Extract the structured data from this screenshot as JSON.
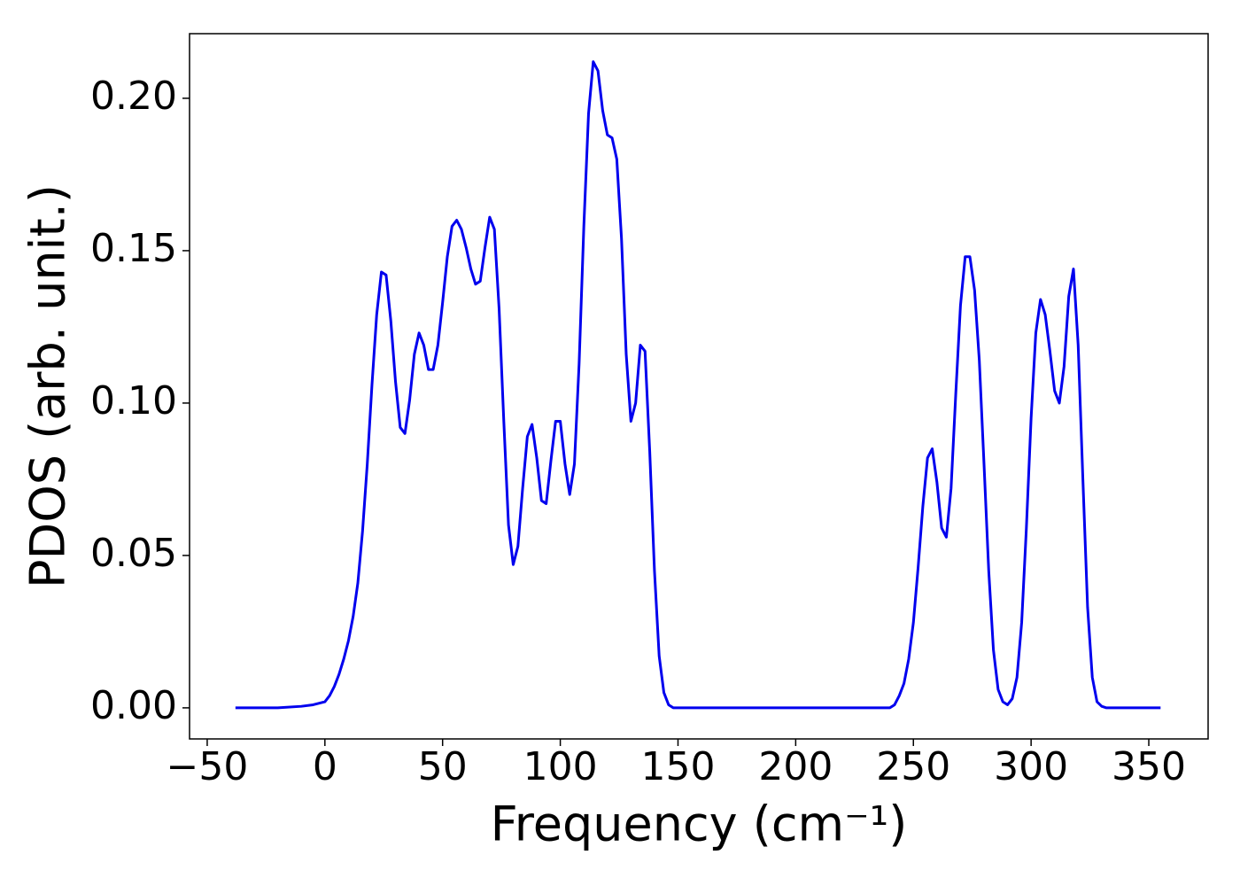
{
  "chart_data": {
    "type": "line",
    "xlabel": "Frequency (cm⁻¹)",
    "ylabel": "PDOS (arb. unit.)",
    "x": [
      -38,
      -30,
      -20,
      -10,
      -5,
      0,
      2,
      4,
      6,
      8,
      10,
      12,
      14,
      16,
      18,
      20,
      22,
      24,
      26,
      28,
      30,
      32,
      34,
      36,
      38,
      40,
      42,
      44,
      46,
      48,
      50,
      52,
      54,
      56,
      58,
      60,
      62,
      64,
      66,
      68,
      70,
      72,
      74,
      76,
      78,
      80,
      82,
      84,
      86,
      88,
      90,
      92,
      94,
      96,
      98,
      100,
      102,
      104,
      106,
      108,
      110,
      112,
      114,
      116,
      118,
      120,
      122,
      124,
      126,
      128,
      130,
      132,
      134,
      136,
      138,
      140,
      142,
      144,
      146,
      148,
      160,
      180,
      200,
      220,
      240,
      242,
      244,
      246,
      248,
      250,
      252,
      254,
      256,
      258,
      260,
      262,
      264,
      266,
      268,
      270,
      272,
      274,
      276,
      278,
      280,
      282,
      284,
      286,
      288,
      290,
      292,
      294,
      296,
      298,
      300,
      302,
      304,
      306,
      308,
      310,
      312,
      314,
      316,
      318,
      320,
      322,
      324,
      326,
      328,
      330,
      332,
      345,
      355
    ],
    "series": [
      {
        "name": "PDOS",
        "color": "#0000ee",
        "values": [
          0,
          0,
          0,
          0.0005,
          0.001,
          0.002,
          0.004,
          0.007,
          0.011,
          0.016,
          0.022,
          0.03,
          0.041,
          0.058,
          0.08,
          0.106,
          0.129,
          0.143,
          0.142,
          0.127,
          0.107,
          0.092,
          0.09,
          0.101,
          0.116,
          0.123,
          0.119,
          0.111,
          0.111,
          0.119,
          0.133,
          0.148,
          0.158,
          0.16,
          0.157,
          0.151,
          0.144,
          0.139,
          0.14,
          0.151,
          0.161,
          0.157,
          0.131,
          0.094,
          0.06,
          0.047,
          0.053,
          0.072,
          0.089,
          0.093,
          0.082,
          0.068,
          0.067,
          0.081,
          0.094,
          0.094,
          0.08,
          0.07,
          0.08,
          0.113,
          0.158,
          0.195,
          0.212,
          0.209,
          0.196,
          0.188,
          0.187,
          0.18,
          0.154,
          0.116,
          0.094,
          0.1,
          0.119,
          0.117,
          0.084,
          0.045,
          0.017,
          0.005,
          0.001,
          0,
          0,
          0,
          0,
          0,
          0,
          0.001,
          0.004,
          0.008,
          0.016,
          0.028,
          0.046,
          0.066,
          0.082,
          0.085,
          0.074,
          0.059,
          0.056,
          0.072,
          0.103,
          0.132,
          0.148,
          0.148,
          0.137,
          0.114,
          0.08,
          0.045,
          0.019,
          0.006,
          0.002,
          0.001,
          0.003,
          0.01,
          0.028,
          0.059,
          0.095,
          0.123,
          0.134,
          0.129,
          0.117,
          0.104,
          0.1,
          0.112,
          0.135,
          0.144,
          0.119,
          0.075,
          0.033,
          0.01,
          0.002,
          0.0005,
          0,
          0,
          0
        ]
      }
    ],
    "xlim": [
      -57.5,
      375.2
    ],
    "ylim": [
      -0.0102,
      0.2212
    ],
    "xticks": [
      {
        "value": -50,
        "label": "−50"
      },
      0,
      50,
      100,
      150,
      200,
      250,
      300,
      350
    ],
    "yticks": [
      {
        "value": 0,
        "label": "0.00"
      },
      {
        "value": 0.05,
        "label": "0.05"
      },
      {
        "value": 0.1,
        "label": "0.10"
      },
      {
        "value": 0.15,
        "label": "0.15"
      },
      {
        "value": 0.2,
        "label": "0.20"
      }
    ],
    "grid": false
  }
}
